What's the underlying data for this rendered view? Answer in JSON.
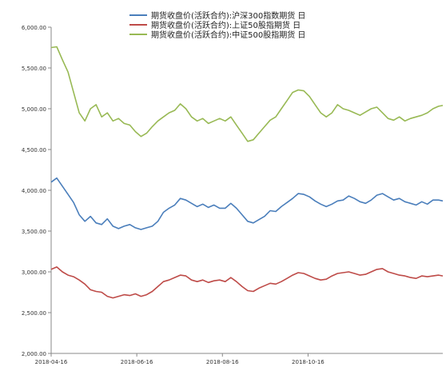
{
  "chart_data": {
    "type": "line",
    "title": "",
    "xlabel": "",
    "ylabel": "",
    "ylim": [
      2000,
      6000
    ],
    "yticks": [
      2000,
      2500,
      3000,
      3500,
      4000,
      4500,
      5000,
      5500,
      6000
    ],
    "ytick_labels": [
      "2,000.00",
      "2,500.00",
      "3,000.00",
      "3,500.00",
      "4,000.00",
      "4,500.00",
      "5,000.00",
      "5,500.00",
      "6,000.00"
    ],
    "x_domain": [
      "2018-04-16",
      "2019-01-20"
    ],
    "xticks": [
      "2018-04-16",
      "2018-06-16",
      "2018-08-16",
      "2018-10-16"
    ],
    "grid": false,
    "legend_position": "top",
    "series": [
      {
        "name": "期货收盘价(活跃合约):沪深300指数期货 日",
        "color": "#4a7ebb",
        "points": [
          [
            "2018-04-16",
            4100
          ],
          [
            "2018-04-20",
            4150
          ],
          [
            "2018-04-24",
            4050
          ],
          [
            "2018-04-28",
            3950
          ],
          [
            "2018-05-02",
            3850
          ],
          [
            "2018-05-06",
            3700
          ],
          [
            "2018-05-10",
            3620
          ],
          [
            "2018-05-14",
            3680
          ],
          [
            "2018-05-18",
            3600
          ],
          [
            "2018-05-22",
            3580
          ],
          [
            "2018-05-26",
            3650
          ],
          [
            "2018-05-30",
            3560
          ],
          [
            "2018-06-03",
            3530
          ],
          [
            "2018-06-07",
            3560
          ],
          [
            "2018-06-11",
            3580
          ],
          [
            "2018-06-15",
            3540
          ],
          [
            "2018-06-19",
            3520
          ],
          [
            "2018-06-23",
            3540
          ],
          [
            "2018-06-27",
            3560
          ],
          [
            "2018-07-01",
            3620
          ],
          [
            "2018-07-05",
            3730
          ],
          [
            "2018-07-09",
            3780
          ],
          [
            "2018-07-13",
            3820
          ],
          [
            "2018-07-17",
            3900
          ],
          [
            "2018-07-21",
            3880
          ],
          [
            "2018-07-25",
            3840
          ],
          [
            "2018-07-29",
            3800
          ],
          [
            "2018-08-02",
            3830
          ],
          [
            "2018-08-06",
            3790
          ],
          [
            "2018-08-10",
            3820
          ],
          [
            "2018-08-14",
            3780
          ],
          [
            "2018-08-18",
            3780
          ],
          [
            "2018-08-22",
            3840
          ],
          [
            "2018-08-26",
            3780
          ],
          [
            "2018-08-30",
            3700
          ],
          [
            "2018-09-03",
            3620
          ],
          [
            "2018-09-07",
            3600
          ],
          [
            "2018-09-11",
            3640
          ],
          [
            "2018-09-15",
            3680
          ],
          [
            "2018-09-19",
            3750
          ],
          [
            "2018-09-23",
            3740
          ],
          [
            "2018-09-27",
            3800
          ],
          [
            "2018-10-01",
            3850
          ],
          [
            "2018-10-05",
            3900
          ],
          [
            "2018-10-09",
            3960
          ],
          [
            "2018-10-13",
            3950
          ],
          [
            "2018-10-17",
            3920
          ],
          [
            "2018-10-21",
            3870
          ],
          [
            "2018-10-25",
            3830
          ],
          [
            "2018-10-29",
            3800
          ],
          [
            "2018-11-02",
            3830
          ],
          [
            "2018-11-06",
            3870
          ],
          [
            "2018-11-10",
            3880
          ],
          [
            "2018-11-14",
            3930
          ],
          [
            "2018-11-18",
            3900
          ],
          [
            "2018-11-22",
            3860
          ],
          [
            "2018-11-26",
            3840
          ],
          [
            "2018-11-30",
            3880
          ],
          [
            "2018-12-04",
            3940
          ],
          [
            "2018-12-08",
            3960
          ],
          [
            "2018-12-12",
            3920
          ],
          [
            "2018-12-16",
            3880
          ],
          [
            "2018-12-20",
            3900
          ],
          [
            "2018-12-24",
            3860
          ],
          [
            "2018-12-28",
            3840
          ],
          [
            "2019-01-01",
            3820
          ],
          [
            "2019-01-05",
            3860
          ],
          [
            "2019-01-09",
            3830
          ],
          [
            "2019-01-13",
            3880
          ],
          [
            "2019-01-17",
            3880
          ],
          [
            "2019-01-20",
            3870
          ]
        ]
      },
      {
        "name": "期货收盘价(活跃合约):上证50股指期货 日",
        "color": "#be4b48",
        "points": [
          [
            "2018-04-16",
            3030
          ],
          [
            "2018-04-20",
            3060
          ],
          [
            "2018-04-24",
            3000
          ],
          [
            "2018-04-28",
            2960
          ],
          [
            "2018-05-02",
            2940
          ],
          [
            "2018-05-06",
            2900
          ],
          [
            "2018-05-10",
            2850
          ],
          [
            "2018-05-14",
            2780
          ],
          [
            "2018-05-18",
            2760
          ],
          [
            "2018-05-22",
            2750
          ],
          [
            "2018-05-26",
            2700
          ],
          [
            "2018-05-30",
            2680
          ],
          [
            "2018-06-03",
            2700
          ],
          [
            "2018-06-07",
            2720
          ],
          [
            "2018-06-11",
            2710
          ],
          [
            "2018-06-15",
            2730
          ],
          [
            "2018-06-19",
            2700
          ],
          [
            "2018-06-23",
            2720
          ],
          [
            "2018-06-27",
            2760
          ],
          [
            "2018-07-01",
            2820
          ],
          [
            "2018-07-05",
            2880
          ],
          [
            "2018-07-09",
            2900
          ],
          [
            "2018-07-13",
            2930
          ],
          [
            "2018-07-17",
            2960
          ],
          [
            "2018-07-21",
            2950
          ],
          [
            "2018-07-25",
            2900
          ],
          [
            "2018-07-29",
            2880
          ],
          [
            "2018-08-02",
            2900
          ],
          [
            "2018-08-06",
            2870
          ],
          [
            "2018-08-10",
            2890
          ],
          [
            "2018-08-14",
            2900
          ],
          [
            "2018-08-18",
            2880
          ],
          [
            "2018-08-22",
            2930
          ],
          [
            "2018-08-26",
            2880
          ],
          [
            "2018-08-30",
            2820
          ],
          [
            "2018-09-03",
            2770
          ],
          [
            "2018-09-07",
            2760
          ],
          [
            "2018-09-11",
            2800
          ],
          [
            "2018-09-15",
            2830
          ],
          [
            "2018-09-19",
            2860
          ],
          [
            "2018-09-23",
            2850
          ],
          [
            "2018-09-27",
            2880
          ],
          [
            "2018-10-01",
            2920
          ],
          [
            "2018-10-05",
            2960
          ],
          [
            "2018-10-09",
            2990
          ],
          [
            "2018-10-13",
            2980
          ],
          [
            "2018-10-17",
            2950
          ],
          [
            "2018-10-21",
            2920
          ],
          [
            "2018-10-25",
            2900
          ],
          [
            "2018-10-29",
            2910
          ],
          [
            "2018-11-02",
            2950
          ],
          [
            "2018-11-06",
            2980
          ],
          [
            "2018-11-10",
            2990
          ],
          [
            "2018-11-14",
            3000
          ],
          [
            "2018-11-18",
            2980
          ],
          [
            "2018-11-22",
            2960
          ],
          [
            "2018-11-26",
            2970
          ],
          [
            "2018-11-30",
            3000
          ],
          [
            "2018-12-04",
            3030
          ],
          [
            "2018-12-08",
            3040
          ],
          [
            "2018-12-12",
            3000
          ],
          [
            "2018-12-16",
            2980
          ],
          [
            "2018-12-20",
            2960
          ],
          [
            "2018-12-24",
            2950
          ],
          [
            "2018-12-28",
            2930
          ],
          [
            "2019-01-01",
            2920
          ],
          [
            "2019-01-05",
            2950
          ],
          [
            "2019-01-09",
            2940
          ],
          [
            "2019-01-13",
            2950
          ],
          [
            "2019-01-17",
            2960
          ],
          [
            "2019-01-20",
            2950
          ]
        ]
      },
      {
        "name": "期货收盘价(活跃合约):中证500股指期货 日",
        "color": "#98b954",
        "points": [
          [
            "2018-04-16",
            5750
          ],
          [
            "2018-04-20",
            5760
          ],
          [
            "2018-04-24",
            5600
          ],
          [
            "2018-04-28",
            5450
          ],
          [
            "2018-05-02",
            5200
          ],
          [
            "2018-05-06",
            4950
          ],
          [
            "2018-05-10",
            4850
          ],
          [
            "2018-05-14",
            5000
          ],
          [
            "2018-05-18",
            5050
          ],
          [
            "2018-05-22",
            4900
          ],
          [
            "2018-05-26",
            4950
          ],
          [
            "2018-05-30",
            4850
          ],
          [
            "2018-06-03",
            4880
          ],
          [
            "2018-06-07",
            4820
          ],
          [
            "2018-06-11",
            4800
          ],
          [
            "2018-06-15",
            4720
          ],
          [
            "2018-06-19",
            4660
          ],
          [
            "2018-06-23",
            4700
          ],
          [
            "2018-06-27",
            4780
          ],
          [
            "2018-07-01",
            4850
          ],
          [
            "2018-07-05",
            4900
          ],
          [
            "2018-07-09",
            4950
          ],
          [
            "2018-07-13",
            4980
          ],
          [
            "2018-07-17",
            5060
          ],
          [
            "2018-07-21",
            5000
          ],
          [
            "2018-07-25",
            4900
          ],
          [
            "2018-07-29",
            4850
          ],
          [
            "2018-08-02",
            4880
          ],
          [
            "2018-08-06",
            4820
          ],
          [
            "2018-08-10",
            4850
          ],
          [
            "2018-08-14",
            4880
          ],
          [
            "2018-08-18",
            4850
          ],
          [
            "2018-08-22",
            4900
          ],
          [
            "2018-08-26",
            4800
          ],
          [
            "2018-08-30",
            4700
          ],
          [
            "2018-09-03",
            4600
          ],
          [
            "2018-09-07",
            4620
          ],
          [
            "2018-09-11",
            4700
          ],
          [
            "2018-09-15",
            4780
          ],
          [
            "2018-09-19",
            4860
          ],
          [
            "2018-09-23",
            4900
          ],
          [
            "2018-09-27",
            5000
          ],
          [
            "2018-10-01",
            5100
          ],
          [
            "2018-10-05",
            5200
          ],
          [
            "2018-10-09",
            5230
          ],
          [
            "2018-10-13",
            5220
          ],
          [
            "2018-10-17",
            5150
          ],
          [
            "2018-10-21",
            5050
          ],
          [
            "2018-10-25",
            4950
          ],
          [
            "2018-10-29",
            4900
          ],
          [
            "2018-11-02",
            4950
          ],
          [
            "2018-11-06",
            5050
          ],
          [
            "2018-11-10",
            5000
          ],
          [
            "2018-11-14",
            4980
          ],
          [
            "2018-11-18",
            4950
          ],
          [
            "2018-11-22",
            4920
          ],
          [
            "2018-11-26",
            4960
          ],
          [
            "2018-11-30",
            5000
          ],
          [
            "2018-12-04",
            5020
          ],
          [
            "2018-12-08",
            4950
          ],
          [
            "2018-12-12",
            4880
          ],
          [
            "2018-12-16",
            4860
          ],
          [
            "2018-12-20",
            4900
          ],
          [
            "2018-12-24",
            4850
          ],
          [
            "2018-12-28",
            4880
          ],
          [
            "2019-01-01",
            4900
          ],
          [
            "2019-01-05",
            4920
          ],
          [
            "2019-01-09",
            4950
          ],
          [
            "2019-01-13",
            5000
          ],
          [
            "2019-01-17",
            5030
          ],
          [
            "2019-01-20",
            5040
          ]
        ]
      }
    ]
  }
}
